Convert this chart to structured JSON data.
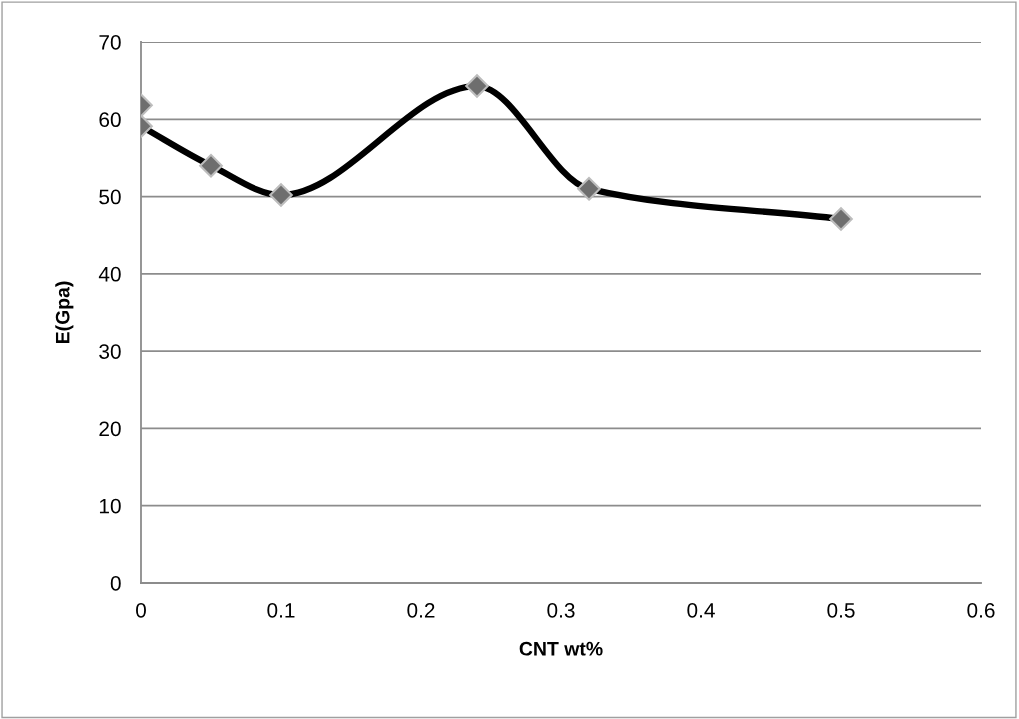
{
  "chart_data": {
    "type": "line",
    "xlabel": "CNT wt%",
    "ylabel": "E(Gpa)",
    "xlim": [
      0,
      0.6
    ],
    "xticks": [
      0,
      0.1,
      0.2,
      0.3,
      0.4,
      0.5,
      0.6
    ],
    "ylim": [
      0,
      70
    ],
    "yticks": [
      0,
      10,
      20,
      30,
      40,
      50,
      60,
      70
    ],
    "grid": "y",
    "marker": "diamond",
    "line_style": "solid",
    "series": [
      {
        "color": "#000000",
        "x": [
          0,
          0.05,
          0.1,
          0.24,
          0.32,
          0.5
        ],
        "values": [
          59.1,
          54.0,
          50.2,
          64.3,
          51.0,
          47.1
        ]
      },
      {
        "type": "scatter",
        "color": "#6e6e6e",
        "x": [
          0
        ],
        "values": [
          61.8
        ]
      }
    ]
  }
}
